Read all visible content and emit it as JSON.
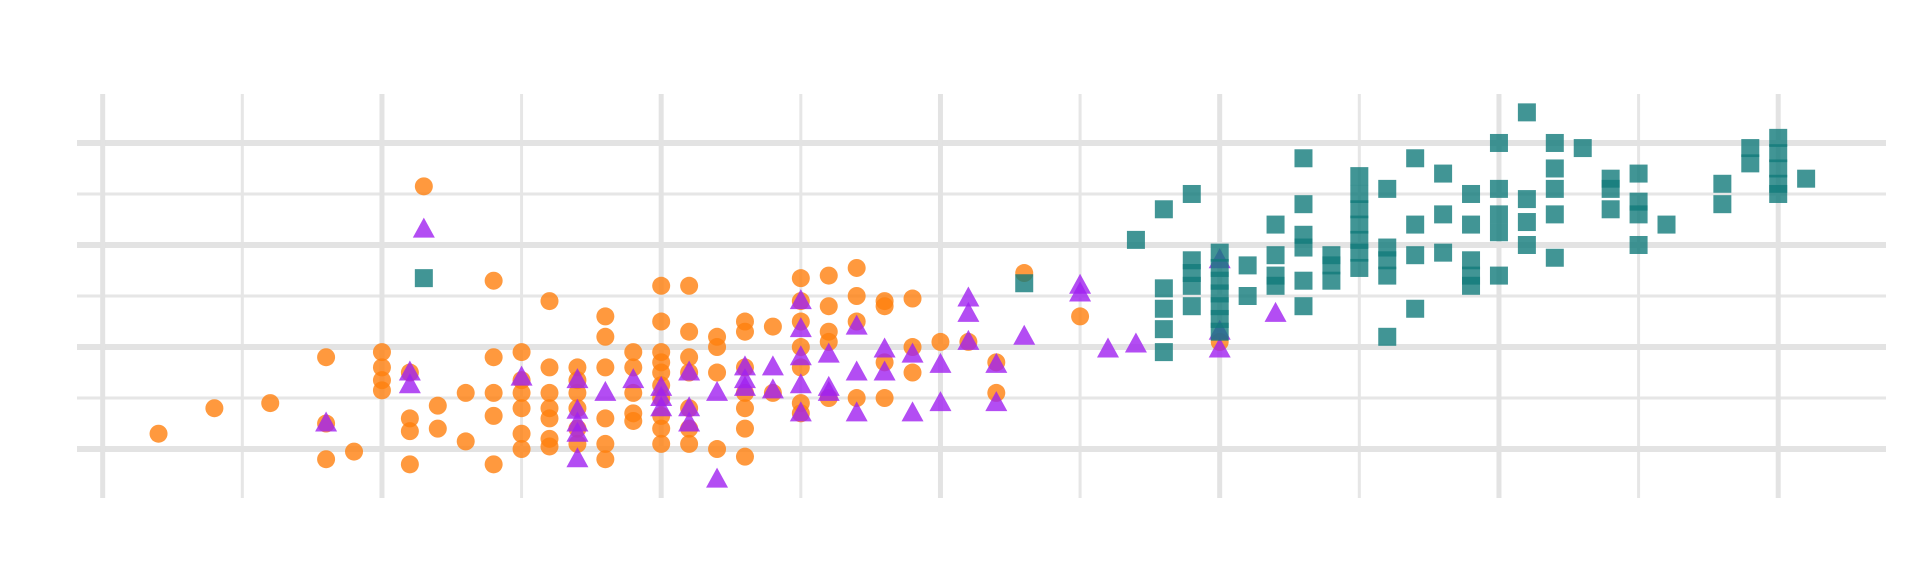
{
  "chart_data": {
    "type": "scatter",
    "xlim": [
      169.08,
      233.86
    ],
    "ylim": [
      2520,
      6480
    ],
    "xticks": [
      170,
      180,
      190,
      200,
      210,
      220,
      230
    ],
    "xminor": [
      175,
      185,
      195,
      205,
      215,
      225
    ],
    "yticks": [
      3000,
      4000,
      5000,
      6000
    ],
    "yminor": [
      3500,
      4500,
      5500
    ],
    "grid": true,
    "series": [
      {
        "color": "#ff7f0e",
        "marker": "circle",
        "x": [
          172,
          174,
          176,
          178,
          178,
          178,
          179,
          180,
          180,
          180,
          180,
          181,
          181,
          181,
          181,
          181.5,
          182,
          182,
          183,
          183,
          184,
          184,
          184,
          184,
          184,
          185,
          185,
          185,
          185,
          185,
          185,
          186,
          186,
          186,
          186,
          186,
          186,
          186,
          187,
          187,
          187,
          187,
          187,
          187,
          188,
          188,
          188,
          188,
          188,
          188,
          189,
          189,
          189,
          189,
          189,
          190,
          190,
          190,
          190,
          190,
          190,
          190,
          190,
          190,
          190,
          191,
          191,
          191,
          191,
          191,
          191,
          191,
          192,
          192,
          192,
          192,
          193,
          193,
          193,
          193,
          193,
          193,
          193,
          194,
          194,
          195,
          195,
          195,
          195,
          195,
          195,
          195,
          196,
          196,
          196,
          196,
          196,
          197,
          197,
          197,
          197,
          198,
          198,
          198,
          198,
          199,
          199,
          199,
          200,
          201,
          202,
          202,
          203,
          205,
          210
        ],
        "values": [
          3150,
          3400,
          3450,
          3900,
          3250,
          2900,
          2975,
          3950,
          3800,
          3675,
          3575,
          3750,
          3300,
          3175,
          2850,
          5575,
          3425,
          3200,
          3550,
          3075,
          4650,
          3900,
          3550,
          3325,
          2850,
          3950,
          3675,
          3550,
          3400,
          3150,
          3000,
          4450,
          3800,
          3550,
          3400,
          3300,
          3100,
          3025,
          3800,
          3675,
          3550,
          3400,
          3200,
          3050,
          4300,
          4100,
          3800,
          3300,
          3050,
          2900,
          3950,
          3800,
          3550,
          3350,
          3275,
          4600,
          4250,
          3950,
          3850,
          3750,
          3625,
          3500,
          3325,
          3200,
          3050,
          4600,
          4150,
          3900,
          3750,
          3400,
          3200,
          3050,
          4100,
          4000,
          3750,
          3000,
          4250,
          4150,
          3800,
          3550,
          3400,
          3200,
          2925,
          4200,
          3550,
          4675,
          4450,
          4250,
          4000,
          3800,
          3450,
          3350,
          4700,
          4400,
          4150,
          4050,
          3500,
          4775,
          4500,
          4250,
          3500,
          4450,
          4400,
          3850,
          3500,
          4475,
          4000,
          3750,
          4050,
          4050,
          3850,
          3550,
          4725,
          4300,
          4050
        ]
      },
      {
        "color": "#a020f0",
        "marker": "triangle",
        "x": [
          178,
          181,
          181,
          181.5,
          185,
          187,
          187,
          187,
          187,
          187,
          188,
          189,
          190,
          190,
          190,
          191,
          191,
          191,
          192,
          192,
          193,
          193,
          193,
          194,
          194,
          195,
          195,
          195,
          195,
          195,
          196,
          196,
          196,
          197,
          197,
          197,
          198,
          198,
          199,
          199,
          200,
          200,
          201,
          201,
          201,
          202,
          202,
          203,
          205,
          205,
          206,
          207,
          210,
          210,
          210,
          212
        ],
        "values": [
          3250,
          3750,
          3625,
          5150,
          3700,
          3675,
          3375,
          3250,
          3150,
          2900,
          3550,
          3675,
          3600,
          3500,
          3400,
          3750,
          3400,
          3250,
          3550,
          2700,
          3800,
          3675,
          3600,
          3800,
          3575,
          4450,
          4175,
          3900,
          3625,
          3350,
          3925,
          3600,
          3550,
          4200,
          3750,
          3350,
          3975,
          3750,
          3925,
          3350,
          3825,
          3450,
          4475,
          4325,
          4050,
          3825,
          3450,
          4100,
          4600,
          4525,
          3975,
          4025,
          4850,
          4150,
          3975,
          4325
        ]
      },
      {
        "color": "#127a7a",
        "marker": "square",
        "x": [
          181.5,
          203,
          207,
          208,
          208,
          208,
          208,
          208,
          209,
          209,
          209,
          209,
          209,
          210,
          210,
          210,
          210,
          210,
          210,
          210,
          211,
          211,
          212,
          212,
          212,
          212,
          213,
          213,
          213,
          213,
          213,
          213,
          214,
          214,
          214,
          215,
          215,
          215,
          215,
          215,
          215,
          215,
          216,
          216,
          216,
          216,
          216,
          217,
          217,
          217,
          217,
          218,
          218,
          218,
          219,
          219,
          219,
          219,
          219,
          220,
          220,
          220,
          220,
          220,
          221,
          221,
          221,
          221,
          222,
          222,
          222,
          222,
          222,
          223,
          224,
          224,
          224,
          225,
          225,
          225,
          225,
          226,
          228,
          228,
          229,
          229,
          230,
          230,
          230,
          230,
          230,
          231
        ],
        "values": [
          4675,
          4625,
          5050,
          5350,
          4575,
          4375,
          4175,
          3950,
          5500,
          4850,
          4725,
          4600,
          4400,
          4925,
          4775,
          4650,
          4525,
          4400,
          4275,
          4150,
          4800,
          4500,
          5200,
          4900,
          4700,
          4600,
          5850,
          5400,
          5100,
          4975,
          4650,
          4400,
          4900,
          4800,
          4650,
          5675,
          5500,
          5350,
          5200,
          5050,
          4925,
          4775,
          5550,
          4975,
          4850,
          4700,
          4100,
          5850,
          5200,
          4900,
          4375,
          5700,
          5300,
          4925,
          5500,
          5200,
          4850,
          4700,
          4600,
          6000,
          5550,
          5300,
          5125,
          4700,
          6300,
          5450,
          5225,
          5000,
          6000,
          5750,
          5550,
          5300,
          4875,
          5950,
          5650,
          5550,
          5350,
          5700,
          5425,
          5300,
          5000,
          5200,
          5600,
          5400,
          5950,
          5800,
          6050,
          5900,
          5750,
          5600,
          5500,
          5650
        ]
      }
    ]
  }
}
